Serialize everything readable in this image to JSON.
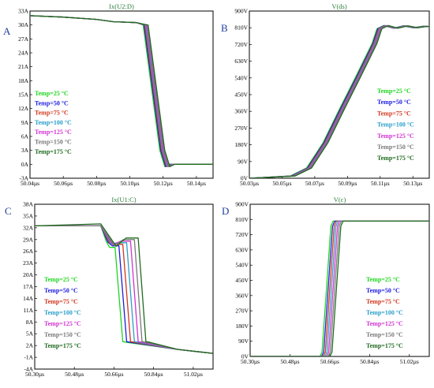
{
  "colors": {
    "25": "#1fd61f",
    "50": "#1c1ce0",
    "75": "#d2361c",
    "100": "#2a9fc9",
    "125": "#d233d2",
    "150": "#7a7a7a",
    "175": "#1f6b1f"
  },
  "chart_data": [
    {
      "panel": "A",
      "type": "line",
      "title": "Ix(U2:D)",
      "xlim": [
        50.04,
        50.15
      ],
      "ylim": [
        -3,
        33
      ],
      "x_ticks": [
        "50.04µs",
        "50.06µs",
        "50.08µs",
        "50.10µs",
        "50.12µs",
        "50.14µs"
      ],
      "x_tick_values": [
        50.04,
        50.06,
        50.08,
        50.1,
        50.12,
        50.14
      ],
      "y_ticks": [
        "-3A",
        "0A",
        "3A",
        "6A",
        "9A",
        "12A",
        "15A",
        "18A",
        "21A",
        "24A",
        "27A",
        "30A",
        "33A"
      ],
      "y_tick_values": [
        -3,
        0,
        3,
        6,
        9,
        12,
        15,
        18,
        21,
        24,
        27,
        30,
        33
      ],
      "legend": [
        "Temp=25 °C",
        "Temp=50 °C",
        "Temp=75 °C",
        "Temp=100 °C",
        "Temp=125 °C",
        "Temp=150 °C",
        "Temp=175 °C"
      ],
      "series": [
        {
          "name": "Temp=25 °C",
          "color_key": "25",
          "x": [
            50.04,
            50.06,
            50.08,
            50.09,
            50.104,
            50.108,
            50.118,
            50.121,
            50.124,
            50.15
          ],
          "y": [
            32.0,
            31.7,
            31.2,
            30.7,
            30.5,
            30.0,
            3.0,
            -0.5,
            0.0,
            0.0
          ]
        },
        {
          "name": "Temp=50 °C",
          "color_key": "50",
          "x": [
            50.04,
            50.06,
            50.08,
            50.09,
            50.104,
            50.1085,
            50.1185,
            50.1215,
            50.1245,
            50.15
          ],
          "y": [
            32.0,
            31.7,
            31.2,
            30.7,
            30.5,
            30.0,
            3.0,
            -0.5,
            0.0,
            0.0
          ]
        },
        {
          "name": "Temp=75 °C",
          "color_key": "75",
          "x": [
            50.04,
            50.06,
            50.08,
            50.09,
            50.104,
            50.109,
            50.119,
            50.122,
            50.125,
            50.15
          ],
          "y": [
            32.0,
            31.7,
            31.2,
            30.7,
            30.5,
            30.0,
            3.0,
            -0.5,
            0.0,
            0.0
          ]
        },
        {
          "name": "Temp=100 °C",
          "color_key": "100",
          "x": [
            50.04,
            50.06,
            50.08,
            50.09,
            50.104,
            50.1095,
            50.1195,
            50.1225,
            50.1255,
            50.15
          ],
          "y": [
            32.0,
            31.7,
            31.2,
            30.7,
            30.5,
            30.0,
            3.0,
            -0.5,
            0.0,
            0.0
          ]
        },
        {
          "name": "Temp=125 °C",
          "color_key": "125",
          "x": [
            50.04,
            50.06,
            50.08,
            50.09,
            50.104,
            50.11,
            50.12,
            50.123,
            50.126,
            50.15
          ],
          "y": [
            32.0,
            31.7,
            31.2,
            30.7,
            30.5,
            30.0,
            3.0,
            -0.5,
            0.0,
            0.0
          ]
        },
        {
          "name": "Temp=150 °C",
          "color_key": "150",
          "x": [
            50.04,
            50.06,
            50.08,
            50.09,
            50.104,
            50.1105,
            50.1205,
            50.1235,
            50.1265,
            50.15
          ],
          "y": [
            32.0,
            31.7,
            31.2,
            30.7,
            30.5,
            30.0,
            3.0,
            -0.5,
            0.0,
            0.0
          ]
        },
        {
          "name": "Temp=175 °C",
          "color_key": "175",
          "x": [
            50.04,
            50.06,
            50.08,
            50.09,
            50.104,
            50.111,
            50.121,
            50.124,
            50.127,
            50.15
          ],
          "y": [
            32.0,
            31.7,
            31.2,
            30.7,
            30.5,
            30.0,
            3.0,
            -0.5,
            0.0,
            0.0
          ]
        }
      ]
    },
    {
      "panel": "B",
      "type": "line",
      "title": "V(ds)",
      "xlim": [
        50.03,
        50.14
      ],
      "ylim": [
        0,
        900
      ],
      "x_ticks": [
        "50.03µs",
        "50.05µs",
        "50.07µs",
        "50.09µs",
        "50.11µs",
        "50.13µs"
      ],
      "x_tick_values": [
        50.03,
        50.05,
        50.07,
        50.09,
        50.11,
        50.13
      ],
      "y_ticks": [
        "0V",
        "90V",
        "180V",
        "270V",
        "360V",
        "450V",
        "540V",
        "630V",
        "720V",
        "810V",
        "900V"
      ],
      "y_tick_values": [
        0,
        90,
        180,
        270,
        360,
        450,
        540,
        630,
        720,
        810,
        900
      ],
      "legend": [
        "Temp=25 °C",
        "Temp=50 °C",
        "Temp=75 °C",
        "Temp=100 °C",
        "Temp=125 °C",
        "Temp=150 °C",
        "Temp=175 °C"
      ],
      "series": [
        {
          "name": "Temp=25 °C",
          "color_key": "25",
          "x": [
            50.03,
            50.055,
            50.065,
            50.075,
            50.085,
            50.095,
            50.105,
            50.108,
            50.112,
            50.118,
            50.124,
            50.13,
            50.136,
            50.14
          ],
          "y": [
            0,
            12,
            55,
            190,
            370,
            545,
            725,
            805,
            822,
            808,
            820,
            810,
            818,
            815
          ]
        },
        {
          "name": "Temp=50 °C",
          "color_key": "50",
          "x": [
            50.03,
            50.0555,
            50.0655,
            50.0755,
            50.0855,
            50.0955,
            50.1055,
            50.1085,
            50.1125,
            50.1185,
            50.1245,
            50.1305,
            50.1365,
            50.14
          ],
          "y": [
            0,
            12,
            55,
            190,
            370,
            545,
            725,
            805,
            822,
            808,
            820,
            810,
            818,
            815
          ]
        },
        {
          "name": "Temp=75 °C",
          "color_key": "75",
          "x": [
            50.03,
            50.056,
            50.066,
            50.076,
            50.086,
            50.096,
            50.106,
            50.109,
            50.113,
            50.119,
            50.125,
            50.131,
            50.137,
            50.14
          ],
          "y": [
            0,
            12,
            55,
            190,
            370,
            545,
            725,
            805,
            822,
            808,
            820,
            810,
            818,
            815
          ]
        },
        {
          "name": "Temp=100 °C",
          "color_key": "100",
          "x": [
            50.03,
            50.0565,
            50.0665,
            50.0765,
            50.0865,
            50.0965,
            50.1065,
            50.1095,
            50.1135,
            50.1195,
            50.1255,
            50.1315,
            50.1375,
            50.14
          ],
          "y": [
            0,
            12,
            55,
            190,
            370,
            545,
            725,
            805,
            822,
            808,
            820,
            810,
            818,
            815
          ]
        },
        {
          "name": "Temp=125 °C",
          "color_key": "125",
          "x": [
            50.03,
            50.057,
            50.067,
            50.077,
            50.087,
            50.097,
            50.107,
            50.11,
            50.114,
            50.12,
            50.126,
            50.132,
            50.138,
            50.14
          ],
          "y": [
            0,
            12,
            55,
            190,
            370,
            545,
            725,
            805,
            822,
            808,
            820,
            810,
            818,
            815
          ]
        },
        {
          "name": "Temp=150 °C",
          "color_key": "150",
          "x": [
            50.03,
            50.0575,
            50.0675,
            50.0775,
            50.0875,
            50.0975,
            50.1075,
            50.1105,
            50.1145,
            50.1205,
            50.1265,
            50.1325,
            50.1385,
            50.14
          ],
          "y": [
            0,
            12,
            55,
            190,
            370,
            545,
            725,
            805,
            822,
            808,
            820,
            810,
            818,
            815
          ]
        },
        {
          "name": "Temp=175 °C",
          "color_key": "175",
          "x": [
            50.03,
            50.058,
            50.068,
            50.078,
            50.088,
            50.098,
            50.108,
            50.111,
            50.115,
            50.121,
            50.127,
            50.133,
            50.139,
            50.14
          ],
          "y": [
            0,
            12,
            55,
            190,
            370,
            545,
            725,
            805,
            822,
            808,
            820,
            810,
            818,
            815
          ]
        }
      ]
    },
    {
      "panel": "C",
      "type": "line",
      "title": "Ix(U1:C)",
      "xlim": [
        50.3,
        51.11
      ],
      "ylim": [
        -4,
        38
      ],
      "x_ticks": [
        "50.30µs",
        "50.48µs",
        "50.66µs",
        "50.84µs",
        "51.02µs"
      ],
      "x_tick_values": [
        50.3,
        50.48,
        50.66,
        50.84,
        51.02
      ],
      "y_ticks": [
        "-4A",
        "-1A",
        "2A",
        "5A",
        "8A",
        "11A",
        "14A",
        "17A",
        "20A",
        "23A",
        "26A",
        "29A",
        "32A",
        "35A",
        "38A"
      ],
      "y_tick_values": [
        -4,
        -1,
        2,
        5,
        8,
        11,
        14,
        17,
        20,
        23,
        26,
        29,
        32,
        35,
        38
      ],
      "legend": [
        "Temp=25 °C",
        "Temp=50 °C",
        "Temp=75 °C",
        "Temp=100 °C",
        "Temp=125 °C",
        "Temp=150 °C",
        "Temp=175 °C"
      ],
      "series": [
        {
          "name": "Temp=25 °C",
          "color_key": "25",
          "x": [
            50.3,
            50.6,
            50.625,
            50.64,
            50.665,
            50.7,
            50.72,
            50.95,
            51.11
          ],
          "y": [
            32.5,
            32.5,
            28.5,
            27.0,
            27.0,
            3.0,
            2.8,
            1.0,
            0.0
          ]
        },
        {
          "name": "Temp=50 °C",
          "color_key": "50",
          "x": [
            50.3,
            50.6,
            50.6325,
            50.6525,
            50.6825,
            50.7175,
            50.7375,
            50.95,
            51.11
          ],
          "y": [
            32.5,
            32.5,
            28.3,
            27.4,
            27.4,
            3.0,
            2.8,
            1.0,
            0.0
          ]
        },
        {
          "name": "Temp=75 °C",
          "color_key": "75",
          "x": [
            50.3,
            50.6,
            50.64,
            50.665,
            50.7,
            50.735,
            50.755,
            50.95,
            51.11
          ],
          "y": [
            32.5,
            32.5,
            28.1,
            27.8,
            27.8,
            3.0,
            2.8,
            1.0,
            0.0
          ]
        },
        {
          "name": "Temp=100 °C",
          "color_key": "100",
          "x": [
            50.3,
            50.6,
            50.6475,
            50.6775,
            50.7175,
            50.7525,
            50.7725,
            50.95,
            51.11
          ],
          "y": [
            32.5,
            32.5,
            27.9,
            28.2,
            28.2,
            3.0,
            2.8,
            1.0,
            0.0
          ]
        },
        {
          "name": "Temp=125 °C",
          "color_key": "125",
          "x": [
            50.3,
            50.6,
            50.655,
            50.69,
            50.735,
            50.77,
            50.79,
            50.95,
            51.11
          ],
          "y": [
            32.5,
            32.5,
            27.7,
            28.6,
            28.6,
            3.0,
            2.8,
            1.0,
            0.0
          ]
        },
        {
          "name": "Temp=150 °C",
          "color_key": "150",
          "x": [
            50.3,
            50.6,
            50.6625,
            50.7025,
            50.7525,
            50.7875,
            50.8075,
            50.95,
            51.11
          ],
          "y": [
            32.5,
            32.5,
            27.5,
            29.0,
            29.0,
            3.0,
            2.8,
            1.0,
            0.0
          ]
        },
        {
          "name": "Temp=175 °C",
          "color_key": "175",
          "x": [
            50.3,
            50.6,
            50.67,
            50.715,
            50.77,
            50.805,
            50.825,
            50.95,
            51.11
          ],
          "y": [
            32.5,
            33.0,
            27.3,
            29.4,
            29.4,
            3.0,
            2.8,
            1.0,
            0.0
          ]
        }
      ]
    },
    {
      "panel": "D",
      "type": "line",
      "title": "V(c)",
      "xlim": [
        50.3,
        51.11
      ],
      "ylim": [
        0,
        900
      ],
      "x_ticks": [
        "50.30µs",
        "50.48µs",
        "50.66µs",
        "50.84µs",
        "51.02µs"
      ],
      "x_tick_values": [
        50.3,
        50.48,
        50.66,
        50.84,
        51.02
      ],
      "y_ticks": [
        "0V",
        "90V",
        "180V",
        "270V",
        "360V",
        "450V",
        "540V",
        "630V",
        "720V",
        "810V",
        "900V"
      ],
      "y_tick_values": [
        0,
        90,
        180,
        270,
        360,
        450,
        540,
        630,
        720,
        810,
        900
      ],
      "legend": [
        "Temp=25 °C",
        "Temp=50 °C",
        "Temp=75 °C",
        "Temp=100 °C",
        "Temp=125 °C",
        "Temp=150 °C",
        "Temp=175 °C"
      ],
      "series": [
        {
          "name": "Temp=25 °C",
          "color_key": "25",
          "x": [
            50.3,
            50.615,
            50.625,
            50.665,
            50.675,
            51.11
          ],
          "y": [
            0,
            0,
            25,
            770,
            800,
            800
          ]
        },
        {
          "name": "Temp=50 °C",
          "color_key": "50",
          "x": [
            50.3,
            50.6225,
            50.6325,
            50.6725,
            50.6825,
            51.11
          ],
          "y": [
            0,
            0,
            25,
            770,
            800,
            800
          ]
        },
        {
          "name": "Temp=75 °C",
          "color_key": "75",
          "x": [
            50.3,
            50.63,
            50.64,
            50.68,
            50.69,
            51.11
          ],
          "y": [
            0,
            0,
            25,
            770,
            800,
            800
          ]
        },
        {
          "name": "Temp=100 °C",
          "color_key": "100",
          "x": [
            50.3,
            50.6375,
            50.6475,
            50.6875,
            50.6975,
            51.11
          ],
          "y": [
            0,
            0,
            25,
            770,
            800,
            800
          ]
        },
        {
          "name": "Temp=125 °C",
          "color_key": "125",
          "x": [
            50.3,
            50.645,
            50.655,
            50.695,
            50.705,
            51.11
          ],
          "y": [
            0,
            0,
            25,
            770,
            800,
            800
          ]
        },
        {
          "name": "Temp=150 °C",
          "color_key": "150",
          "x": [
            50.3,
            50.6525,
            50.6625,
            50.7025,
            50.7125,
            51.11
          ],
          "y": [
            0,
            0,
            25,
            770,
            800,
            800
          ]
        },
        {
          "name": "Temp=175 °C",
          "color_key": "175",
          "x": [
            50.3,
            50.66,
            50.67,
            50.71,
            50.72,
            51.11
          ],
          "y": [
            0,
            0,
            25,
            770,
            800,
            800
          ]
        }
      ]
    }
  ]
}
